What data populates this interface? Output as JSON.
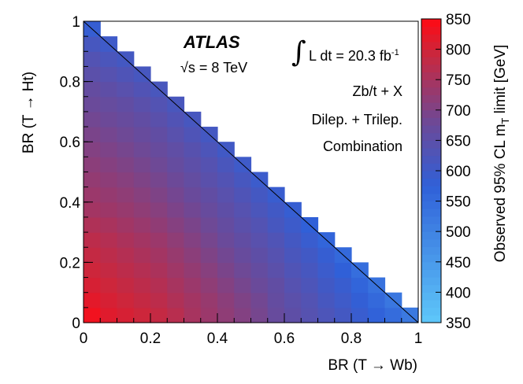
{
  "chart_data": {
    "type": "heatmap",
    "title": "",
    "xlabel": "BR (T → Wb)",
    "ylabel": "BR (T → Ht)",
    "zlabel_prefix": "Observed 95% CL m",
    "zlabel_sub": "T",
    "zlabel_suffix": " limit [GeV]",
    "xlim": [
      0,
      1
    ],
    "ylim": [
      0,
      1
    ],
    "zlim": [
      350,
      850
    ],
    "bin_width": 0.05,
    "x_ticks": [
      0,
      0.2,
      0.4,
      0.6,
      0.8,
      1
    ],
    "x_tick_labels": [
      "0",
      "0.2",
      "0.4",
      "0.6",
      "0.8",
      "1"
    ],
    "y_ticks": [
      0,
      0.2,
      0.4,
      0.6,
      0.8,
      1
    ],
    "y_tick_labels": [
      "0",
      "0.2",
      "0.4",
      "0.6",
      "0.8",
      "1"
    ],
    "z_ticks": [
      350,
      400,
      450,
      500,
      550,
      600,
      650,
      700,
      750,
      800,
      850
    ],
    "z_tick_labels": [
      "350",
      "400",
      "450",
      "500",
      "550",
      "600",
      "650",
      "700",
      "750",
      "800",
      "850"
    ],
    "grid": false,
    "diagonal_boundary": true,
    "limits_by_ht_row": [
      [
        835,
        815,
        805,
        795,
        785,
        770,
        750,
        735,
        720,
        705,
        690,
        670,
        655,
        640,
        625,
        610,
        590,
        570,
        550,
        520
      ],
      [
        820,
        805,
        795,
        785,
        775,
        760,
        745,
        730,
        715,
        700,
        685,
        665,
        650,
        635,
        615,
        600,
        580,
        555,
        525
      ],
      [
        805,
        795,
        785,
        775,
        765,
        750,
        735,
        720,
        705,
        690,
        675,
        660,
        640,
        625,
        605,
        590,
        565,
        535
      ],
      [
        795,
        785,
        775,
        765,
        755,
        740,
        725,
        710,
        695,
        680,
        665,
        650,
        630,
        615,
        595,
        575,
        545
      ],
      [
        785,
        775,
        765,
        755,
        745,
        730,
        715,
        700,
        685,
        670,
        655,
        640,
        620,
        605,
        585,
        555
      ],
      [
        775,
        765,
        755,
        745,
        735,
        720,
        705,
        690,
        675,
        660,
        645,
        630,
        610,
        590,
        565
      ],
      [
        760,
        752,
        742,
        732,
        722,
        708,
        695,
        680,
        665,
        650,
        635,
        615,
        598,
        575
      ],
      [
        745,
        738,
        730,
        720,
        710,
        697,
        684,
        670,
        655,
        640,
        622,
        605,
        585
      ],
      [
        735,
        728,
        720,
        710,
        700,
        687,
        673,
        660,
        645,
        628,
        610,
        590
      ],
      [
        725,
        718,
        710,
        700,
        690,
        677,
        663,
        648,
        633,
        615,
        595
      ],
      [
        715,
        708,
        700,
        690,
        680,
        667,
        653,
        638,
        620,
        600
      ],
      [
        705,
        698,
        690,
        680,
        670,
        657,
        642,
        625,
        605
      ],
      [
        695,
        688,
        680,
        670,
        660,
        645,
        628,
        610
      ],
      [
        685,
        678,
        670,
        660,
        648,
        632,
        615
      ],
      [
        675,
        668,
        660,
        648,
        635,
        618
      ],
      [
        665,
        655,
        645,
        632,
        618
      ],
      [
        650,
        640,
        628,
        615
      ],
      [
        635,
        622,
        610
      ],
      [
        615,
        600
      ],
      [
        585
      ]
    ]
  },
  "annotations": {
    "experiment": "ATLAS",
    "energy": "√s = 8 TeV",
    "lumi_text": "L dt = 20.3 fb",
    "lumi_sup": "-1",
    "integral_sign": "∫",
    "channel": "Zb/t + X",
    "selection": "Dilep. + Trilep.",
    "combination": "Combination"
  },
  "colors": {
    "low": "#5ec8fa",
    "mid_blue": "#3060d8",
    "mid_purple": "#6a4a9a",
    "high_red": "#c8283f",
    "max_red": "#ff0a14"
  }
}
